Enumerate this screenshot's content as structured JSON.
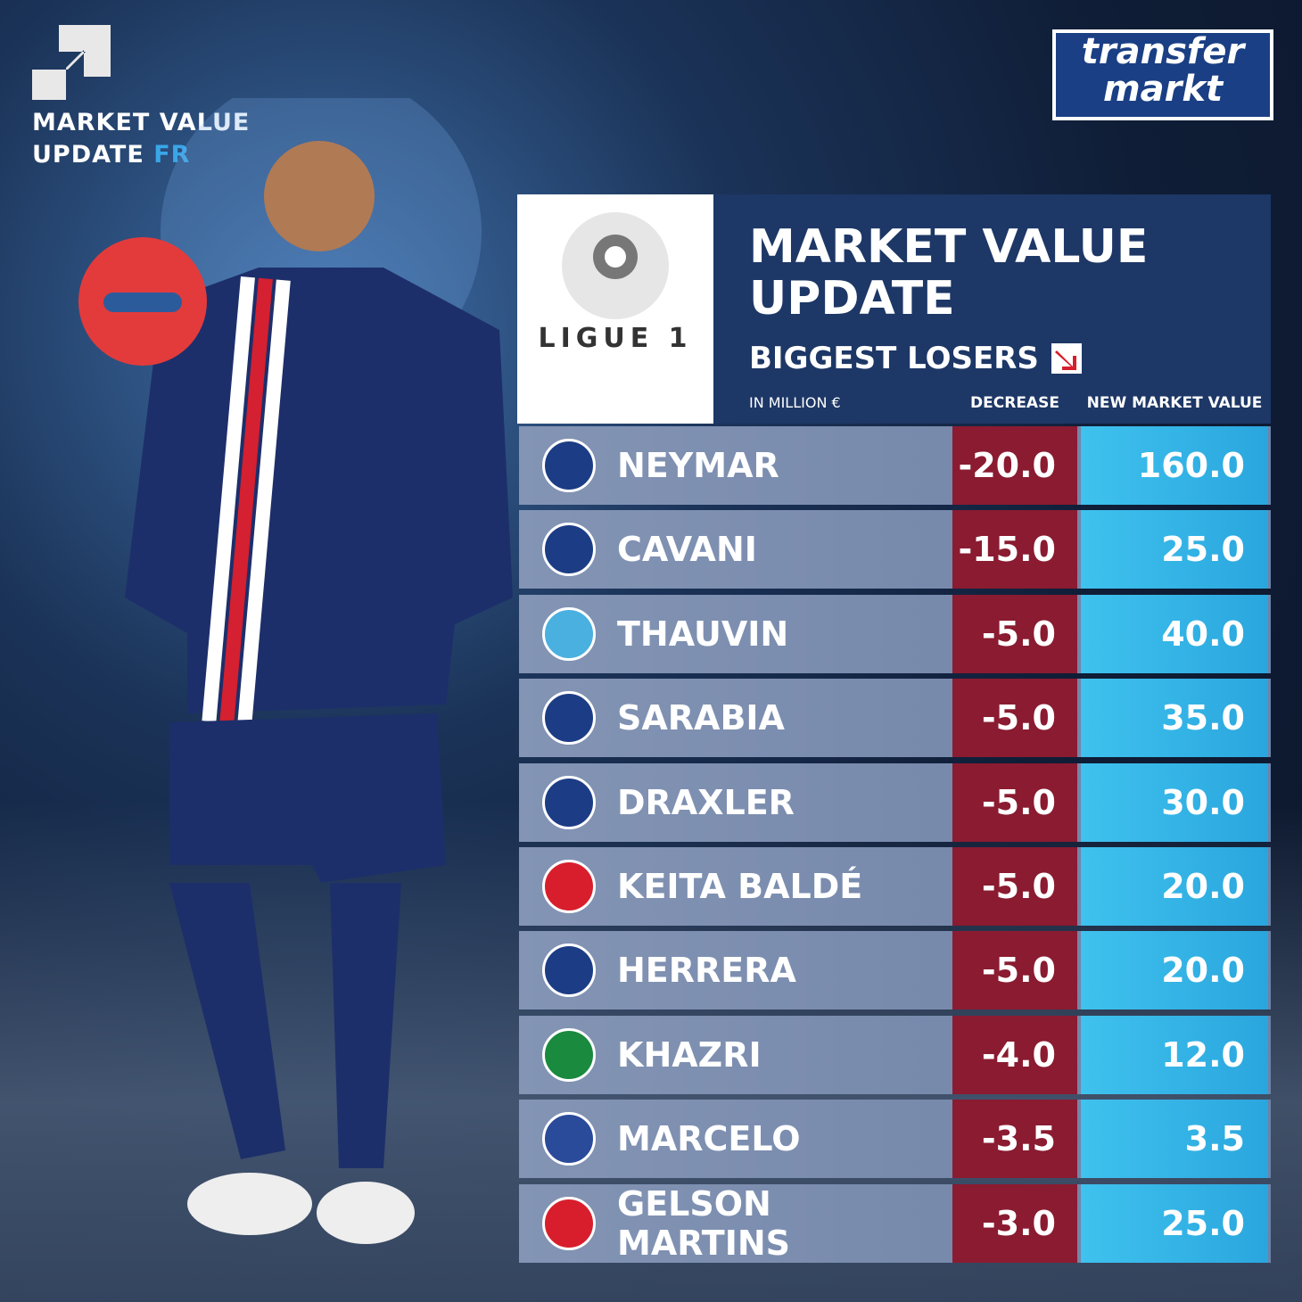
{
  "badge": {
    "line1": "MARKET VALUE",
    "line2": "UPDATE",
    "country": "FR"
  },
  "logo": {
    "line1": "transfer",
    "line2": "markt"
  },
  "league": {
    "name": "LIGUE 1"
  },
  "header": {
    "title_line1": "MARKET VALUE",
    "title_line2": "UPDATE",
    "subtitle": "BIGGEST LOSERS",
    "unit": "IN MILLION €",
    "col_decrease": "DECREASE",
    "col_value": "NEW MARKET VALUE"
  },
  "table": {
    "rows": [
      {
        "player": "NEYMAR",
        "decrease": "-20.0",
        "value": "160.0",
        "badge_color": "#1c3d85"
      },
      {
        "player": "CAVANI",
        "decrease": "-15.0",
        "value": "25.0",
        "badge_color": "#1c3d85"
      },
      {
        "player": "THAUVIN",
        "decrease": "-5.0",
        "value": "40.0",
        "badge_color": "#4ab0e0"
      },
      {
        "player": "SARABIA",
        "decrease": "-5.0",
        "value": "35.0",
        "badge_color": "#1c3d85"
      },
      {
        "player": "DRAXLER",
        "decrease": "-5.0",
        "value": "30.0",
        "badge_color": "#1c3d85"
      },
      {
        "player": "KEITA BALDÉ",
        "decrease": "-5.0",
        "value": "20.0",
        "badge_color": "#d81e2c"
      },
      {
        "player": "HERRERA",
        "decrease": "-5.0",
        "value": "20.0",
        "badge_color": "#1c3d85"
      },
      {
        "player": "KHAZRI",
        "decrease": "-4.0",
        "value": "12.0",
        "badge_color": "#1a8a3e"
      },
      {
        "player": "MARCELO",
        "decrease": "-3.5",
        "value": "3.5",
        "badge_color": "#2a4a9a"
      },
      {
        "player": "GELSON MARTINS",
        "decrease": "-3.0",
        "value": "25.0",
        "badge_color": "#d81e2c"
      }
    ]
  }
}
